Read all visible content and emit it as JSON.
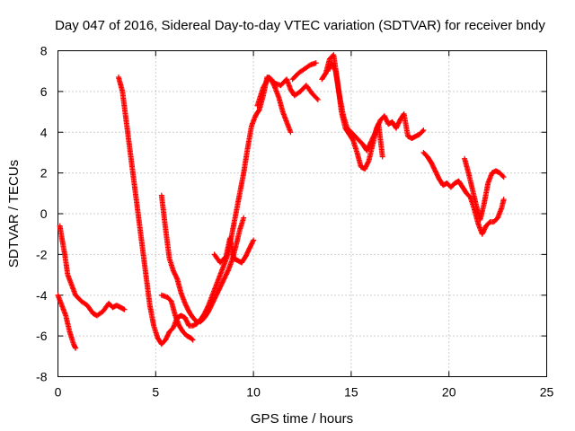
{
  "chart_data": {
    "type": "scatter",
    "title": "Day 047 of 2016, Sidereal Day-to-day VTEC variation (SDTVAR) for receiver bndy",
    "xlabel": "GPS time / hours",
    "ylabel": "SDTVAR / TECUs",
    "xlim": [
      0,
      25
    ],
    "ylim": [
      -8,
      8
    ],
    "xticks": [
      "0",
      "5",
      "10",
      "15",
      "20",
      "25"
    ],
    "yticks": [
      "-8",
      "-6",
      "-4",
      "-2",
      "0",
      "2",
      "4",
      "6",
      "8"
    ],
    "grid": true,
    "marker": "plus",
    "color": "#ff0000",
    "segments": [
      [
        [
          0.0,
          -4.0
        ],
        [
          0.2,
          -4.5
        ],
        [
          0.4,
          -5.0
        ],
        [
          0.6,
          -5.8
        ],
        [
          0.8,
          -6.4
        ],
        [
          0.9,
          -6.6
        ]
      ],
      [
        [
          0.1,
          -0.6
        ],
        [
          0.2,
          -1.2
        ],
        [
          0.35,
          -2.0
        ],
        [
          0.5,
          -3.0
        ],
        [
          0.7,
          -3.5
        ],
        [
          0.9,
          -4.0
        ],
        [
          1.2,
          -4.3
        ],
        [
          1.5,
          -4.5
        ],
        [
          1.8,
          -4.9
        ],
        [
          2.0,
          -5.0
        ],
        [
          2.3,
          -4.8
        ],
        [
          2.6,
          -4.4
        ],
        [
          2.8,
          -4.6
        ],
        [
          3.0,
          -4.5
        ],
        [
          3.2,
          -4.6
        ],
        [
          3.4,
          -4.7
        ]
      ],
      [
        [
          3.1,
          6.7
        ],
        [
          3.3,
          6.0
        ],
        [
          3.5,
          4.5
        ],
        [
          3.7,
          3.0
        ],
        [
          3.9,
          1.5
        ],
        [
          4.1,
          0.0
        ],
        [
          4.3,
          -1.5
        ],
        [
          4.5,
          -3.0
        ],
        [
          4.7,
          -4.5
        ],
        [
          4.9,
          -5.5
        ],
        [
          5.1,
          -6.1
        ],
        [
          5.3,
          -6.4
        ],
        [
          5.5,
          -6.2
        ],
        [
          5.7,
          -5.8
        ],
        [
          5.9,
          -5.6
        ],
        [
          6.1,
          -5.1
        ],
        [
          6.3,
          -5.0
        ],
        [
          6.5,
          -5.1
        ],
        [
          6.7,
          -5.5
        ],
        [
          6.9,
          -5.5
        ],
        [
          7.1,
          -5.4
        ],
        [
          7.3,
          -5.2
        ],
        [
          7.5,
          -4.9
        ],
        [
          7.7,
          -4.5
        ],
        [
          7.9,
          -4.0
        ],
        [
          8.1,
          -3.5
        ],
        [
          8.3,
          -3.0
        ],
        [
          8.5,
          -2.5
        ],
        [
          8.7,
          -2.0
        ],
        [
          8.9,
          -1.0
        ],
        [
          9.1,
          0.0
        ],
        [
          9.3,
          1.0
        ],
        [
          9.5,
          2.0
        ],
        [
          9.7,
          3.2
        ],
        [
          9.9,
          4.3
        ],
        [
          10.1,
          4.8
        ],
        [
          10.3,
          5.1
        ],
        [
          10.5,
          5.8
        ],
        [
          10.7,
          6.7
        ],
        [
          10.9,
          6.6
        ],
        [
          11.1,
          6.2
        ],
        [
          11.3,
          5.7
        ],
        [
          11.5,
          5.0
        ],
        [
          11.7,
          4.5
        ],
        [
          11.9,
          4.0
        ]
      ],
      [
        [
          5.3,
          0.9
        ],
        [
          5.5,
          -0.7
        ],
        [
          5.7,
          -2.2
        ],
        [
          5.9,
          -2.8
        ],
        [
          6.1,
          -3.2
        ],
        [
          6.3,
          -3.9
        ],
        [
          6.5,
          -4.4
        ],
        [
          6.7,
          -4.8
        ],
        [
          6.9,
          -5.1
        ],
        [
          7.1,
          -5.3
        ],
        [
          7.3,
          -5.3
        ],
        [
          7.5,
          -5.1
        ],
        [
          7.7,
          -4.8
        ],
        [
          7.9,
          -4.4
        ],
        [
          8.1,
          -4.0
        ],
        [
          8.3,
          -3.6
        ],
        [
          8.5,
          -3.2
        ],
        [
          8.7,
          -2.8
        ],
        [
          8.9,
          -2.3
        ],
        [
          9.1,
          -1.6
        ],
        [
          9.3,
          -0.8
        ],
        [
          9.5,
          -0.2
        ]
      ],
      [
        [
          5.3,
          -4.0
        ],
        [
          5.6,
          -4.1
        ],
        [
          5.8,
          -4.3
        ],
        [
          6.0,
          -5.0
        ],
        [
          6.2,
          -5.5
        ],
        [
          6.4,
          -5.8
        ],
        [
          6.6,
          -6.0
        ],
        [
          6.8,
          -6.1
        ],
        [
          6.9,
          -6.2
        ]
      ],
      [
        [
          8.0,
          -2.0
        ],
        [
          8.3,
          -2.4
        ],
        [
          8.6,
          -2.1
        ],
        [
          8.8,
          -1.2
        ],
        [
          9.0,
          -2.2
        ],
        [
          9.2,
          -2.3
        ],
        [
          9.4,
          -2.4
        ],
        [
          9.6,
          -2.1
        ],
        [
          9.8,
          -1.7
        ],
        [
          10.0,
          -1.3
        ]
      ],
      [
        [
          10.2,
          5.3
        ],
        [
          10.5,
          6.2
        ],
        [
          10.8,
          6.7
        ],
        [
          11.1,
          6.4
        ],
        [
          11.4,
          6.3
        ],
        [
          11.7,
          6.6
        ],
        [
          11.9,
          6.1
        ],
        [
          12.1,
          5.8
        ],
        [
          12.4,
          6.0
        ],
        [
          12.7,
          6.3
        ],
        [
          13.0,
          5.9
        ],
        [
          13.3,
          5.6
        ]
      ],
      [
        [
          12.0,
          6.6
        ],
        [
          12.3,
          6.9
        ],
        [
          12.6,
          7.1
        ],
        [
          12.9,
          7.3
        ],
        [
          13.2,
          7.4
        ]
      ],
      [
        [
          13.5,
          6.6
        ],
        [
          13.7,
          6.9
        ],
        [
          13.9,
          7.6
        ],
        [
          14.1,
          7.8
        ],
        [
          14.3,
          6.5
        ],
        [
          14.5,
          5.0
        ],
        [
          14.7,
          4.2
        ],
        [
          14.9,
          3.9
        ],
        [
          15.1,
          3.6
        ],
        [
          15.3,
          3.0
        ],
        [
          15.5,
          2.3
        ],
        [
          15.7,
          2.2
        ],
        [
          15.9,
          2.6
        ],
        [
          16.1,
          3.4
        ],
        [
          16.3,
          4.2
        ],
        [
          16.5,
          4.6
        ],
        [
          16.7,
          4.8
        ],
        [
          16.9,
          4.4
        ],
        [
          17.1,
          4.5
        ],
        [
          17.3,
          4.2
        ],
        [
          17.5,
          4.6
        ],
        [
          17.7,
          4.9
        ],
        [
          17.9,
          3.8
        ],
        [
          18.1,
          3.7
        ],
        [
          18.3,
          3.8
        ],
        [
          18.5,
          3.9
        ],
        [
          18.7,
          4.1
        ]
      ],
      [
        [
          13.8,
          7.0
        ],
        [
          14.0,
          7.4
        ],
        [
          14.2,
          7.0
        ],
        [
          14.4,
          5.8
        ],
        [
          14.6,
          4.8
        ],
        [
          14.8,
          4.2
        ],
        [
          15.0,
          4.0
        ],
        [
          15.2,
          3.8
        ],
        [
          15.4,
          3.6
        ],
        [
          15.6,
          3.4
        ],
        [
          15.8,
          3.1
        ],
        [
          16.0,
          3.5
        ],
        [
          16.2,
          3.9
        ],
        [
          16.4,
          4.4
        ],
        [
          16.6,
          2.8
        ]
      ],
      [
        [
          18.7,
          3.0
        ],
        [
          18.9,
          2.8
        ],
        [
          19.1,
          2.5
        ],
        [
          19.3,
          2.1
        ],
        [
          19.5,
          1.7
        ],
        [
          19.7,
          1.4
        ],
        [
          19.9,
          1.5
        ],
        [
          20.1,
          1.3
        ],
        [
          20.3,
          1.5
        ],
        [
          20.5,
          1.6
        ],
        [
          20.7,
          1.3
        ],
        [
          20.9,
          1.0
        ],
        [
          21.1,
          0.8
        ],
        [
          21.3,
          0.2
        ],
        [
          21.5,
          -0.5
        ],
        [
          21.7,
          -1.0
        ],
        [
          21.9,
          -0.6
        ],
        [
          22.1,
          -0.4
        ],
        [
          22.3,
          -0.4
        ],
        [
          22.5,
          -0.2
        ],
        [
          22.7,
          0.3
        ],
        [
          22.8,
          0.7
        ]
      ],
      [
        [
          20.8,
          2.7
        ],
        [
          21.0,
          2.0
        ],
        [
          21.2,
          1.2
        ],
        [
          21.4,
          0.4
        ],
        [
          21.6,
          -0.3
        ],
        [
          21.8,
          0.5
        ],
        [
          22.0,
          1.5
        ],
        [
          22.2,
          2.0
        ],
        [
          22.4,
          2.1
        ],
        [
          22.6,
          2.0
        ],
        [
          22.8,
          1.8
        ]
      ]
    ]
  }
}
